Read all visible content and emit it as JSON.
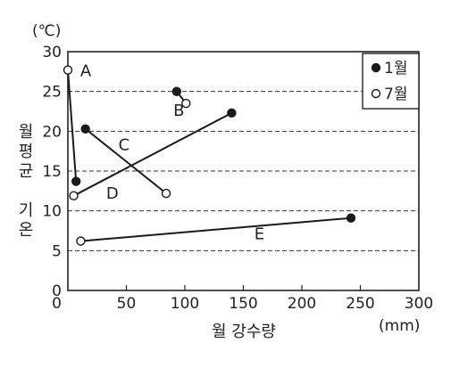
{
  "chart_data": {
    "type": "scatter",
    "xlabel": "월 강수량",
    "xunit": "(mm)",
    "ylabel": "월평균 기온",
    "yunit": "(℃)",
    "xlim": [
      0,
      300
    ],
    "ylim": [
      0,
      30
    ],
    "xticks": [
      "0",
      "50",
      "100",
      "150",
      "200",
      "250",
      "300"
    ],
    "yticks": [
      "0",
      "5",
      "10",
      "15",
      "20",
      "25",
      "30"
    ],
    "grid": "horizontal dashed",
    "legend": {
      "position": "top-right",
      "items": [
        {
          "name": "1월",
          "marker": "filled-circle"
        },
        {
          "name": "7월",
          "marker": "open-circle"
        }
      ]
    },
    "locations": [
      {
        "label": "A",
        "jan": {
          "x": 7,
          "y": 13.7
        },
        "jul": {
          "x": 0,
          "y": 27.7
        }
      },
      {
        "label": "B",
        "jan": {
          "x": 93,
          "y": 25
        },
        "jul": {
          "x": 101,
          "y": 23.5
        }
      },
      {
        "label": "C",
        "jan": {
          "x": 15,
          "y": 20.3
        },
        "jul": {
          "x": 84,
          "y": 12.2
        }
      },
      {
        "label": "D",
        "jan": {
          "x": 140,
          "y": 22.3
        },
        "jul": {
          "x": 5,
          "y": 11.9
        }
      },
      {
        "label": "E",
        "jan": {
          "x": 242,
          "y": 9.1
        },
        "jul": {
          "x": 11,
          "y": 6.2
        }
      }
    ]
  }
}
